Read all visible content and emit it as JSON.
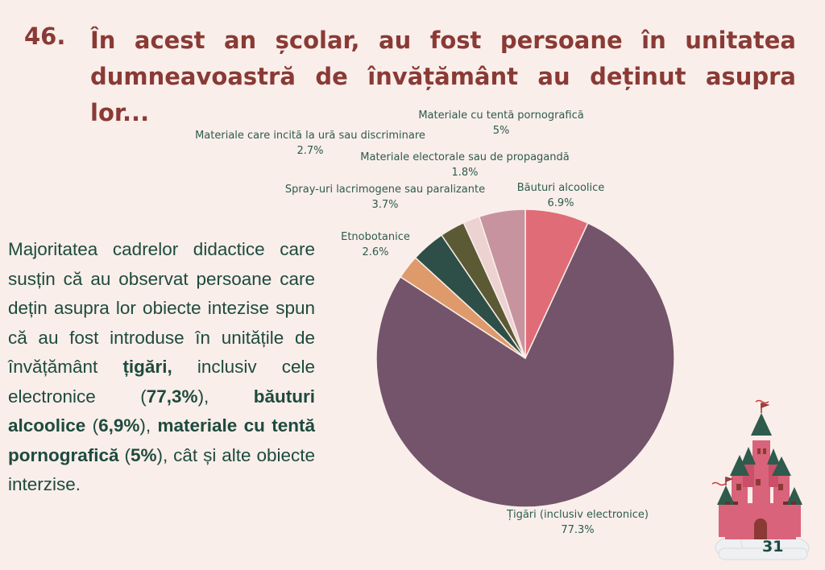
{
  "question": {
    "number": "46.",
    "text": "În acest an școlar, au fost persoane în unitatea dumneavoastră de învățământ au deținut asupra lor..."
  },
  "summary": {
    "intro": "Majoritatea cadrelor didactice care susțin că au observat persoane care dețin asupra lor obiecte intezise spun că au fost introduse în unitățile de învățământ ",
    "item1": "țigări,",
    "mid1": " inclusiv cele electronice (",
    "pct1": "77,3%",
    "mid2": "), ",
    "item2": "băuturi alcoolice",
    "mid3": " (",
    "pct2": "6,9%",
    "mid4": "), ",
    "item3": "materiale cu tentă pornografică",
    "mid5": " (",
    "pct3": "5%",
    "outro": "), cât și alte obiecte interzise."
  },
  "chart_data": {
    "type": "pie",
    "slices": [
      {
        "label": "Băuturi alcoolice",
        "value": 6.9,
        "value_label": "6.9%",
        "color": "#e06c78"
      },
      {
        "label": "Țigări (inclusiv electronice)",
        "value": 77.3,
        "value_label": "77.3%",
        "color": "#73546a"
      },
      {
        "label": "Etnobotanice",
        "value": 2.6,
        "value_label": "2.6%",
        "color": "#df9a6c"
      },
      {
        "label": "Spray-uri lacrimogene sau paralizante",
        "value": 3.7,
        "value_label": "3.7%",
        "color": "#2e4f47"
      },
      {
        "label": "Materiale care incită la ură sau discriminare",
        "value": 2.7,
        "value_label": "2.7%",
        "color": "#5c5a35"
      },
      {
        "label": "Materiale electorale sau de propagandă",
        "value": 1.8,
        "value_label": "1.8%",
        "color": "#ecd2d1"
      },
      {
        "label": "Materiale cu tentă pornografică",
        "value": 5.0,
        "value_label": "5%",
        "color": "#c6939e"
      }
    ]
  },
  "page": {
    "number": "31"
  },
  "decor": {
    "castle_icon": "castle-icon"
  }
}
